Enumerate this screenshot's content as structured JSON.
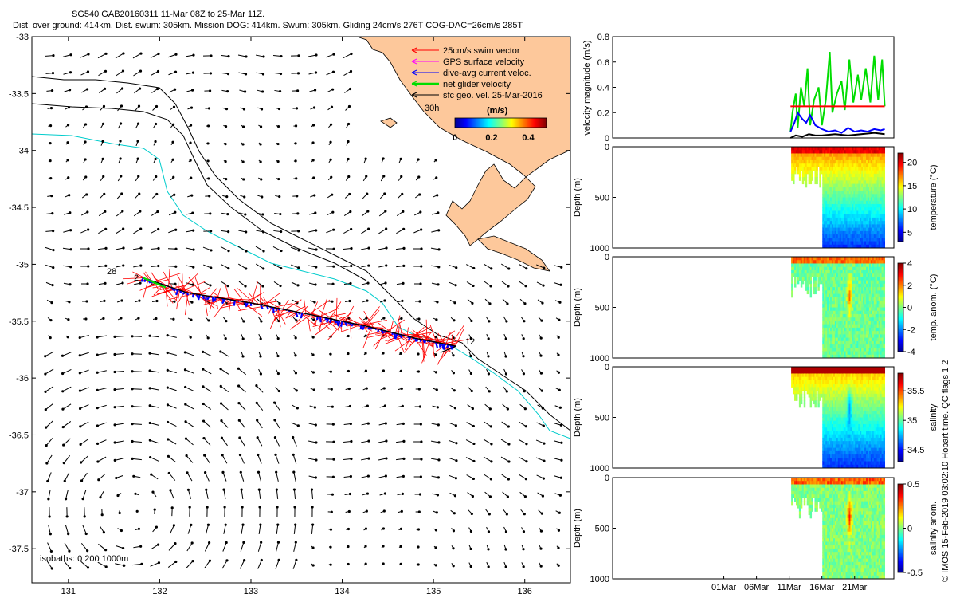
{
  "header": {
    "line1": "SG540 GAB20160311 11-Mar 08Z to 25-Mar 11Z.",
    "line2": "Dist. over ground: 414km. Dist. swum: 305km. Mission DOG: 414km. Swum: 305km. Gliding 24cm/s 276T COG-DAC=26cm/s 285T"
  },
  "credit": "© IMOS 15-Feb-2019 03:02:10 Hobart time. QC flags 1  2",
  "colors": {
    "land": "#fdc89b",
    "swim": "#ff0000",
    "gps": "#ff00ff",
    "dac": "#0000ff",
    "net": "#00dd00",
    "geo": "#000000",
    "isobath200": "#000000",
    "isobath1000": "#00cccc"
  },
  "chart_data": [
    {
      "type": "map",
      "xlim": [
        130.6,
        136.5
      ],
      "ylim": [
        -37.8,
        -33
      ],
      "xticks": [
        131,
        132,
        133,
        134,
        135,
        136
      ],
      "yticks": [
        -33,
        -33.5,
        -34,
        -34.5,
        -35,
        -35.5,
        -36,
        -36.5,
        -37,
        -37.5
      ],
      "legend": {
        "items": [
          {
            "label": "25cm/s swim vector",
            "color": "#ff0000"
          },
          {
            "label": "GPS surface velocity",
            "color": "#ff00ff"
          },
          {
            "label": "dive-avg current veloc.",
            "color": "#0000ff"
          },
          {
            "label": "net glider velocity",
            "color": "#00dd00"
          },
          {
            "label": "sfc geo. vel. 25-Mar-2016",
            "color": "#000000"
          }
        ],
        "scale_label": "30h",
        "colorbar_title": "(m/s)",
        "colorbar_ticks": [
          "0",
          "0.2",
          "0.4"
        ],
        "colorbar_range": [
          0,
          0.5
        ]
      },
      "isobath_label": "isobaths: 0   200  1000m",
      "track_labels": {
        "start_day": "28",
        "start_marker": "2",
        "end_marker": "12"
      },
      "track": [
        {
          "lon": 131.82,
          "lat": -35.12
        },
        {
          "lon": 132.3,
          "lat": -35.25
        },
        {
          "lon": 133.0,
          "lat": -35.34
        },
        {
          "lon": 133.7,
          "lat": -35.45
        },
        {
          "lon": 134.3,
          "lat": -35.55
        },
        {
          "lon": 134.8,
          "lat": -35.65
        },
        {
          "lon": 135.25,
          "lat": -35.72
        }
      ]
    },
    {
      "type": "line",
      "ylabel": "velocity magnitude (m/s)",
      "ylim": [
        0,
        0.8
      ],
      "yticks": [
        "0",
        "0.2",
        "0.4",
        "0.6",
        "0.8"
      ],
      "xlim": [
        -16,
        27
      ],
      "series": [
        {
          "color": "#00dd00",
          "values": [
            [
              11.2,
              0.05
            ],
            [
              11.5,
              0.2
            ],
            [
              12,
              0.35
            ],
            [
              12.3,
              0.08
            ],
            [
              12.8,
              0.4
            ],
            [
              13.3,
              0.25
            ],
            [
              13.8,
              0.55
            ],
            [
              14.2,
              0.1
            ],
            [
              14.8,
              0.3
            ],
            [
              15.5,
              0.4
            ],
            [
              16,
              0.1
            ],
            [
              16.6,
              0.3
            ],
            [
              17.2,
              0.68
            ],
            [
              17.6,
              0.2
            ],
            [
              18.3,
              0.35
            ],
            [
              19,
              0.45
            ],
            [
              19.5,
              0.22
            ],
            [
              20.2,
              0.62
            ],
            [
              20.8,
              0.28
            ],
            [
              21.5,
              0.5
            ],
            [
              22,
              0.3
            ],
            [
              22.7,
              0.55
            ],
            [
              23.4,
              0.28
            ],
            [
              24,
              0.65
            ],
            [
              24.6,
              0.3
            ],
            [
              25.2,
              0.62
            ],
            [
              25.6,
              0.25
            ]
          ]
        },
        {
          "color": "#ff0000",
          "values": [
            [
              11.2,
              0.25
            ],
            [
              25.6,
              0.25
            ]
          ]
        },
        {
          "color": "#0000ff",
          "values": [
            [
              11.2,
              0.05
            ],
            [
              11.8,
              0.12
            ],
            [
              12.3,
              0.2
            ],
            [
              13,
              0.15
            ],
            [
              13.6,
              0.12
            ],
            [
              14.2,
              0.18
            ],
            [
              15,
              0.1
            ],
            [
              16,
              0.07
            ],
            [
              17,
              0.05
            ],
            [
              18,
              0.06
            ],
            [
              19,
              0.04
            ],
            [
              20,
              0.08
            ],
            [
              21,
              0.05
            ],
            [
              22,
              0.06
            ],
            [
              23,
              0.05
            ],
            [
              24,
              0.07
            ],
            [
              25,
              0.06
            ],
            [
              25.6,
              0.07
            ]
          ]
        },
        {
          "color": "#000000",
          "values": [
            [
              11.2,
              0.0
            ],
            [
              12,
              0.02
            ],
            [
              13,
              0.01
            ],
            [
              14,
              0.03
            ],
            [
              15,
              0.02
            ],
            [
              16,
              0.02
            ],
            [
              18,
              0.03
            ],
            [
              20,
              0.02
            ],
            [
              22,
              0.03
            ],
            [
              24,
              0.04
            ],
            [
              25.6,
              0.03
            ]
          ]
        }
      ]
    },
    {
      "type": "heatmap",
      "ylabel": "Depth (m)",
      "ylim": [
        1000,
        0
      ],
      "yticks": [
        "0",
        "500",
        "1000"
      ],
      "colorbar_label": "temperature (°C)",
      "colorbar_ticks": [
        "5",
        "10",
        "15",
        "20"
      ],
      "colorbar_range": [
        3,
        22
      ]
    },
    {
      "type": "heatmap",
      "ylabel": "Depth (m)",
      "ylim": [
        1000,
        0
      ],
      "yticks": [
        "0",
        "500",
        "1000"
      ],
      "colorbar_label": "temp. anom. (°C)",
      "colorbar_ticks": [
        "-4",
        "-2",
        "0",
        "2",
        "4"
      ],
      "colorbar_range": [
        -4,
        4
      ]
    },
    {
      "type": "heatmap",
      "ylabel": "Depth (m)",
      "ylim": [
        1000,
        0
      ],
      "yticks": [
        "0",
        "500",
        "1000"
      ],
      "colorbar_label": "salinity",
      "colorbar_ticks": [
        "34.5",
        "35",
        "35.5"
      ],
      "colorbar_range": [
        34.3,
        35.8
      ]
    },
    {
      "type": "heatmap",
      "ylabel": "Depth (m)",
      "ylim": [
        1000,
        0
      ],
      "yticks": [
        "0",
        "500",
        "1000"
      ],
      "colorbar_label": "salinity anom.",
      "colorbar_ticks": [
        "-0.5",
        "0",
        "0.5"
      ],
      "colorbar_range": [
        -0.5,
        0.5
      ],
      "xticks": [
        "01Mar",
        "06Mar",
        "11Mar",
        "16Mar",
        "21Mar"
      ]
    }
  ]
}
